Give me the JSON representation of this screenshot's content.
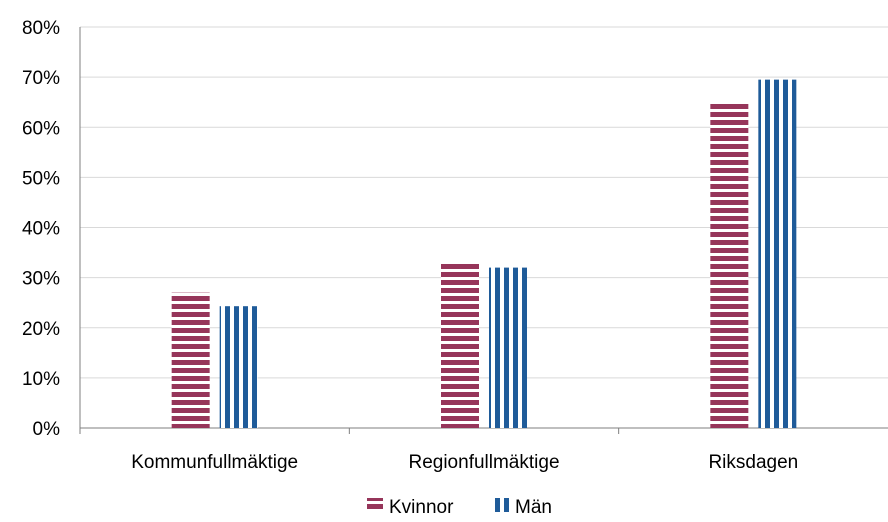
{
  "chart_data": {
    "type": "bar",
    "categories": [
      "Kommunfullmäktige",
      "Regionfullmäktige",
      "Riksdagen"
    ],
    "series": [
      {
        "name": "Kvinnor",
        "values": [
          0.27,
          0.33,
          0.65
        ],
        "color": "#96355a",
        "pattern": "horizontal-stripes"
      },
      {
        "name": "Män",
        "values": [
          0.243,
          0.32,
          0.695
        ],
        "color": "#1f5b99",
        "pattern": "vertical-stripes"
      }
    ],
    "ylim": [
      0,
      0.8
    ],
    "yticks": [
      0,
      0.1,
      0.2,
      0.3,
      0.4,
      0.5,
      0.6,
      0.7,
      0.8
    ],
    "ytick_labels": [
      "0%",
      "10%",
      "20%",
      "30%",
      "40%",
      "50%",
      "60%",
      "70%",
      "80%"
    ],
    "grid": true,
    "legend": "bottom",
    "title": "",
    "xlabel": "",
    "ylabel": ""
  }
}
